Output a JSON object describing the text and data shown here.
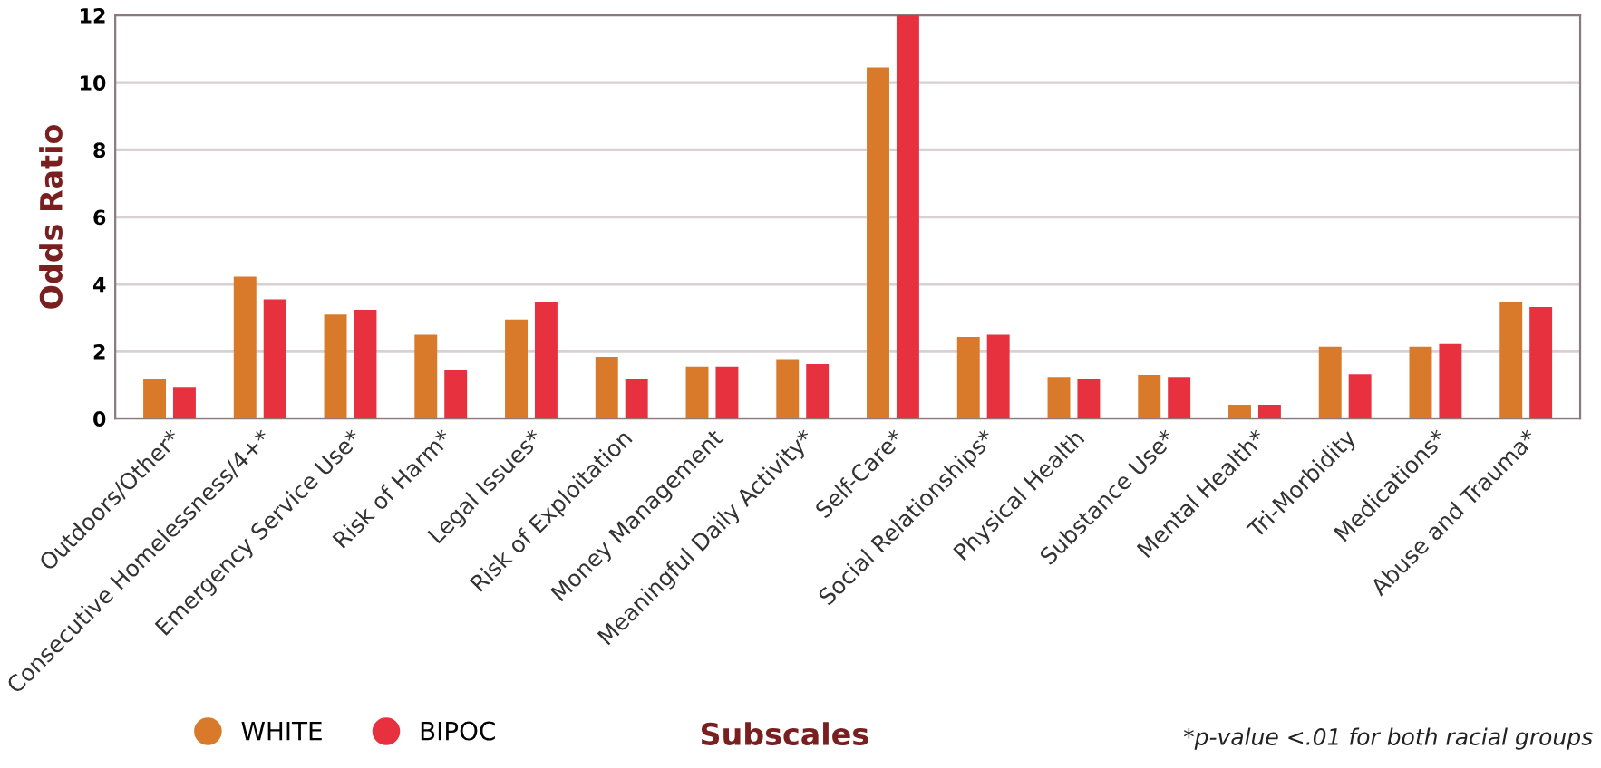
{
  "chart_data": {
    "type": "bar",
    "xlabel": "Subscales",
    "ylabel": "Odds Ratio",
    "categories": [
      "Outdoors/Other*",
      "Consecutive Homelessness/4+*",
      "Emergency Service Use*",
      "Risk of Harm*",
      "Legal Issues*",
      "Risk of Exploitation",
      "Money Management",
      "Meaningful Daily Activity*",
      "Self-Care*",
      "Social Relationships*",
      "Physical Health",
      "Substance Use*",
      "Mental Health*",
      "Tri-Morbidity",
      "Medications*",
      "Abuse and Trauma*"
    ],
    "series": [
      {
        "name": "WHITE",
        "color": "#d97a2b",
        "values": [
          1.17,
          4.22,
          3.1,
          2.5,
          2.95,
          1.84,
          1.55,
          1.77,
          10.45,
          2.43,
          1.24,
          1.3,
          0.41,
          2.14,
          2.14,
          3.46
        ]
      },
      {
        "name": "BIPOC",
        "color": "#e8313f",
        "values": [
          0.94,
          3.55,
          3.24,
          1.46,
          3.46,
          1.17,
          1.55,
          1.62,
          12,
          2.5,
          1.17,
          1.24,
          0.41,
          1.32,
          2.22,
          3.32
        ]
      }
    ],
    "ylim": [
      0,
      12
    ],
    "yticks": [
      0,
      2,
      4,
      6,
      8,
      10,
      12
    ],
    "grid": "y",
    "legend": "bottom left",
    "annotations": [
      "*p-value <.01 for both racial groups"
    ]
  }
}
